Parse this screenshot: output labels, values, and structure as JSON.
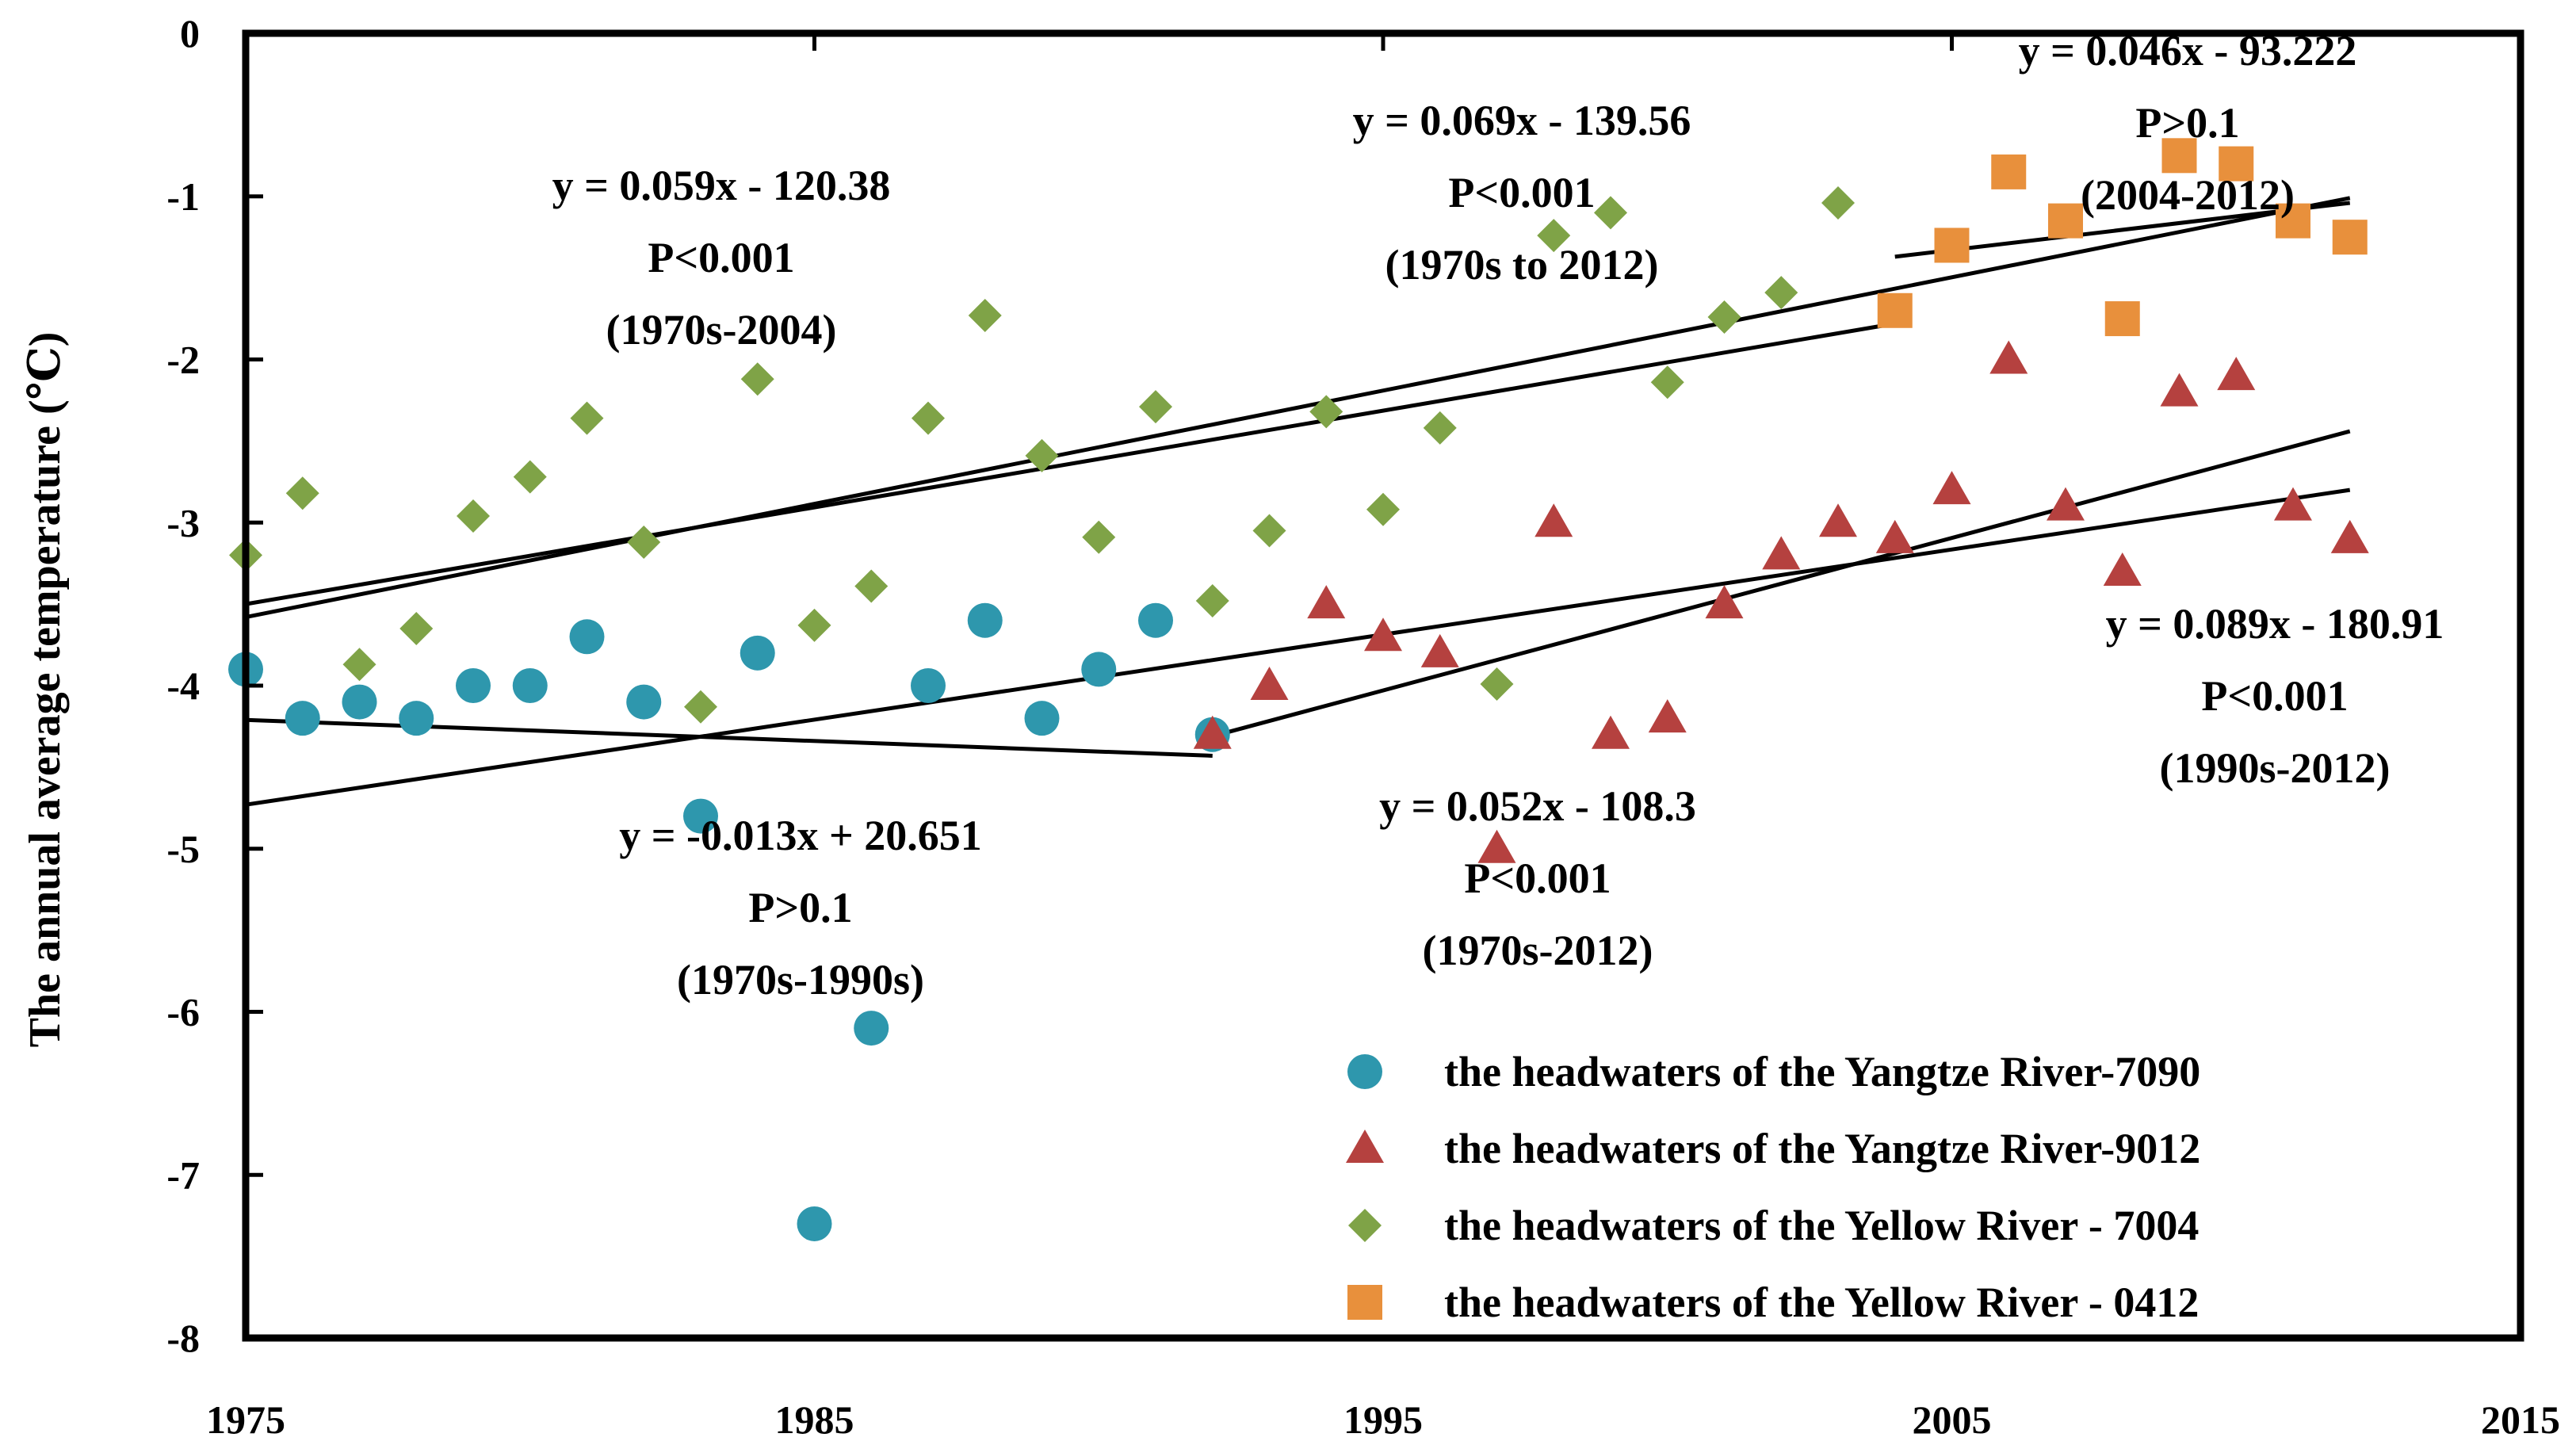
{
  "chart_data": {
    "type": "scatter",
    "title": "",
    "xlabel": "",
    "ylabel": "The annual average temperature (℃)",
    "xlim": [
      1975,
      2015
    ],
    "ylim": [
      -8,
      0
    ],
    "xticks": [
      1975,
      1985,
      1995,
      2005,
      2015
    ],
    "yticks": [
      0,
      -1,
      -2,
      -3,
      -4,
      -5,
      -6,
      -7,
      -8
    ],
    "grid": false,
    "legend_position": "bottom-right",
    "series": [
      {
        "name": "the headwaters of the Yangtze River-7090",
        "marker": "circle",
        "color": "#2E97AD",
        "x": [
          1975,
          1976,
          1977,
          1978,
          1979,
          1980,
          1981,
          1982,
          1983,
          1984,
          1985,
          1986,
          1987,
          1988,
          1989,
          1990,
          1991,
          1992
        ],
        "y": [
          -3.9,
          -4.2,
          -4.1,
          -4.2,
          -4.0,
          -4.0,
          -3.7,
          -4.1,
          -4.8,
          -3.8,
          -7.3,
          -6.1,
          -4.0,
          -3.6,
          -4.2,
          -3.9,
          -3.6,
          -4.3
        ]
      },
      {
        "name": "the headwaters of the Yangtze River-9012",
        "marker": "triangle",
        "color": "#B5413F",
        "x": [
          1992,
          1993,
          1994,
          1995,
          1996,
          1997,
          1998,
          1999,
          2000,
          2001,
          2002,
          2003,
          2004,
          2005,
          2006,
          2007,
          2008,
          2009,
          2010,
          2011,
          2012
        ],
        "y": [
          -4.3,
          -4.0,
          -3.5,
          -3.7,
          -3.8,
          -5.0,
          -3.0,
          -4.3,
          -4.2,
          -3.5,
          -3.2,
          -3.0,
          -3.1,
          -2.8,
          -2.0,
          -2.9,
          -3.3,
          -2.2,
          -2.1,
          -2.9,
          -3.1
        ]
      },
      {
        "name": "the headwaters of the Yellow River - 7004",
        "marker": "diamond",
        "color": "#7FA347",
        "x": [
          1975,
          1976,
          1977,
          1978,
          1979,
          1980,
          1981,
          1982,
          1983,
          1984,
          1985,
          1986,
          1987,
          1988,
          1989,
          1990,
          1991,
          1992,
          1993,
          1994,
          1995,
          1996,
          1997,
          1998,
          1999,
          2000,
          2001,
          2002,
          2003
        ],
        "y": [
          -3.2,
          -2.82,
          -3.87,
          -3.65,
          -2.96,
          -2.72,
          -2.36,
          -3.12,
          -4.13,
          -2.12,
          -3.63,
          -3.39,
          -2.36,
          -1.73,
          -2.59,
          -3.09,
          -2.29,
          -3.48,
          -3.05,
          -2.32,
          -2.92,
          -2.42,
          -3.99,
          -1.24,
          -1.1,
          -2.14,
          -1.74,
          -1.59,
          -1.04
        ]
      },
      {
        "name": "the headwaters of the Yellow River - 0412",
        "marker": "square",
        "color": "#E8903C",
        "x": [
          2004,
          2005,
          2006,
          2007,
          2008,
          2009,
          2010,
          2011,
          2012
        ],
        "y": [
          -1.7,
          -1.3,
          -0.85,
          -1.15,
          -1.75,
          -0.75,
          -0.8,
          -1.15,
          -1.25
        ]
      }
    ],
    "trendlines": [
      {
        "series": "the headwaters of the Yangtze River-7090",
        "x": [
          1975,
          1992
        ],
        "y": [
          -4.21,
          -4.43
        ]
      },
      {
        "series": "the headwaters of the Yangtze River-9012",
        "x": [
          1992,
          2012
        ],
        "y": [
          -4.31,
          -2.44
        ]
      },
      {
        "series": "the headwaters of the Yellow River - 7004",
        "x": [
          1975,
          2004
        ],
        "y": [
          -3.5,
          -1.78
        ]
      },
      {
        "series": "the headwaters of the Yellow River - 0412",
        "x": [
          2004,
          2012
        ],
        "y": [
          -1.37,
          -1.04
        ]
      },
      {
        "series": "combined 1970s to 2012",
        "x": [
          1975,
          2012
        ],
        "y": [
          -3.58,
          -1.01
        ]
      },
      {
        "series": "combined 1970s-2012",
        "x": [
          1975,
          2012
        ],
        "y": [
          -4.73,
          -2.8
        ]
      }
    ],
    "annotations": [
      {
        "lines": [
          "y = 0.059x - 120.38",
          "P<0.001",
          "(1970s-2004)"
        ]
      },
      {
        "lines": [
          "y = 0.069x - 139.56",
          "P<0.001",
          "(1970s to 2012)"
        ]
      },
      {
        "lines": [
          "y = 0.046x - 93.222",
          "P>0.1",
          "(2004-2012)"
        ]
      },
      {
        "lines": [
          "y = 0.089x - 180.91",
          "P<0.001",
          "(1990s-2012)"
        ]
      },
      {
        "lines": [
          "y = 0.052x - 108.3",
          "P<0.001",
          "(1970s-2012)"
        ]
      },
      {
        "lines": [
          "y = -0.013x + 20.651",
          "P>0.1",
          "(1970s-1990s)"
        ]
      }
    ]
  }
}
